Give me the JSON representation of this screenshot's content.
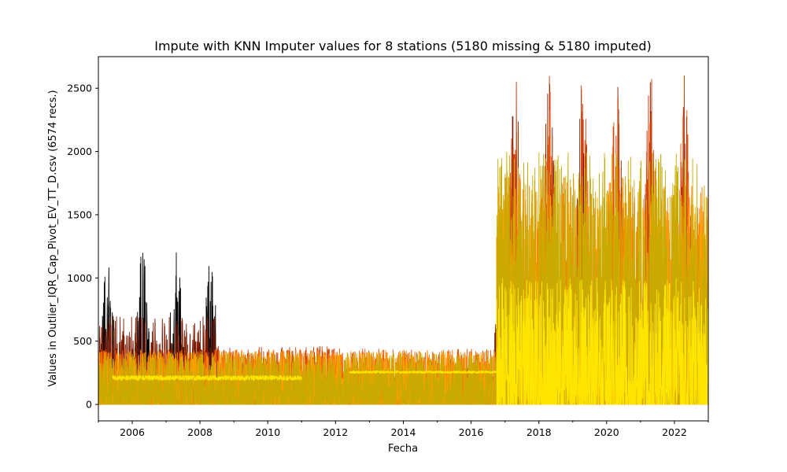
{
  "chart_data": {
    "type": "line",
    "title": "Impute with KNN Imputer values for 8 stations (5180 missing & 5180 imputed)",
    "xlabel": "Fecha",
    "ylabel": "Values in Outlier_IQR_Cap_Pivot_EV_TT_D.csv (6574 recs.)",
    "xlim": [
      "2005-01-01",
      "2023-01-01"
    ],
    "ylim": [
      -130,
      2750
    ],
    "x_ticks": [
      "2006",
      "2008",
      "2010",
      "2012",
      "2014",
      "2016",
      "2018",
      "2020",
      "2022"
    ],
    "y_ticks": [
      0,
      500,
      1000,
      1500,
      2000,
      2500
    ],
    "grid": false,
    "legend": "none",
    "series": [
      {
        "color": "#000000",
        "segments": [
          {
            "start": "2005-01-01",
            "end": "2008-06-30",
            "base": 0,
            "amp": 1200,
            "pattern": "seasonal"
          },
          {
            "start": "2017-01-01",
            "end": "2017-12-31",
            "base": 350,
            "amp": 700,
            "pattern": "noise"
          }
        ],
        "max": 1700
      },
      {
        "color": "#7a1a00",
        "segments": [
          {
            "start": "2005-01-01",
            "end": "2008-06-30",
            "base": 0,
            "amp": 700,
            "pattern": "noise"
          },
          {
            "start": "2016-09-01",
            "end": "2022-12-31",
            "base": 0,
            "amp": 2550,
            "pattern": "seasonal"
          }
        ],
        "max": 2600
      },
      {
        "color": "#c83200",
        "segments": [
          {
            "start": "2008-06-01",
            "end": "2011-12-31",
            "base": 0,
            "amp": 460,
            "pattern": "noise"
          },
          {
            "start": "2016-10-01",
            "end": "2022-12-31",
            "base": 0,
            "amp": 2600,
            "pattern": "seasonal"
          }
        ],
        "max": 2600
      },
      {
        "color": "#e65000",
        "segments": [
          {
            "start": "2005-01-01",
            "end": "2016-10-01",
            "base": 0,
            "amp": 440,
            "pattern": "noise"
          },
          {
            "start": "2016-10-01",
            "end": "2022-12-31",
            "base": 0,
            "amp": 2500,
            "pattern": "seasonal"
          }
        ],
        "max": 2580
      },
      {
        "color": "#ff7800",
        "segments": [
          {
            "start": "2005-01-01",
            "end": "2016-10-01",
            "base": 0,
            "amp": 430,
            "pattern": "noise"
          },
          {
            "start": "2016-10-01",
            "end": "2022-12-31",
            "base": 0,
            "amp": 1800,
            "pattern": "noise"
          }
        ],
        "max": 1800
      },
      {
        "color": "#ffa000",
        "segments": [
          {
            "start": "2005-01-01",
            "end": "2016-10-01",
            "base": 0,
            "amp": 420,
            "pattern": "noise"
          },
          {
            "start": "2016-10-01",
            "end": "2022-12-31",
            "base": 0,
            "amp": 1700,
            "pattern": "noise"
          }
        ],
        "max": 1700
      },
      {
        "color": "#c8aa00",
        "segments": [
          {
            "start": "2005-01-01",
            "end": "2016-10-01",
            "base": 0,
            "amp": 410,
            "pattern": "noise"
          },
          {
            "start": "2016-10-01",
            "end": "2022-12-31",
            "base": 300,
            "amp": 1700,
            "pattern": "noise"
          }
        ],
        "max": 2200
      },
      {
        "color": "#ffe600",
        "segments": [
          {
            "start": "2005-06-01",
            "end": "2010-12-31",
            "base": 210,
            "amp": 40,
            "pattern": "flat"
          },
          {
            "start": "2012-06-01",
            "end": "2016-09-30",
            "base": 255,
            "amp": 20,
            "pattern": "flat"
          },
          {
            "start": "2016-10-01",
            "end": "2022-12-31",
            "base": 0,
            "amp": 1000,
            "pattern": "noise"
          }
        ],
        "max": 1000
      }
    ]
  }
}
